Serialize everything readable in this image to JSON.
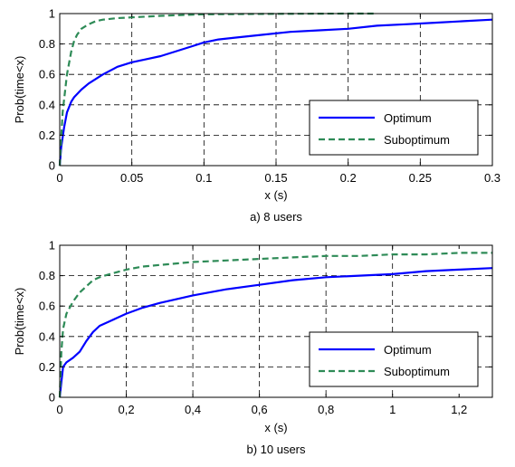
{
  "colors": {
    "optimum": "#0000ff",
    "suboptimum": "#2e8b57",
    "grid": "#000000",
    "axes": "#000000"
  },
  "chart_data": [
    {
      "type": "line",
      "caption": "a) 8 users",
      "xlabel": "x (s)",
      "ylabel": "Prob(time<x)",
      "xlim": [
        0,
        0.3
      ],
      "ylim": [
        0,
        1
      ],
      "xticks": [
        0,
        0.05,
        0.1,
        0.15,
        0.2,
        0.25,
        0.3
      ],
      "xtick_labels": [
        "0",
        "0.05",
        "0.1",
        "0.15",
        "0.2",
        "0.25",
        "0.3"
      ],
      "yticks": [
        0,
        0.2,
        0.4,
        0.6,
        0.8,
        1
      ],
      "ytick_labels": [
        "0",
        "0.2",
        "0.4",
        "0.6",
        "0.8",
        "1"
      ],
      "grid": true,
      "legend_position": "lower-right",
      "series": [
        {
          "name": "Optimum",
          "style": "solid",
          "x": [
            0,
            0.001,
            0.003,
            0.005,
            0.008,
            0.01,
            0.015,
            0.02,
            0.03,
            0.04,
            0.05,
            0.06,
            0.07,
            0.08,
            0.09,
            0.1,
            0.11,
            0.12,
            0.14,
            0.16,
            0.18,
            0.2,
            0.22,
            0.24,
            0.26,
            0.28,
            0.3
          ],
          "y": [
            0,
            0.12,
            0.25,
            0.35,
            0.42,
            0.45,
            0.5,
            0.54,
            0.6,
            0.65,
            0.68,
            0.7,
            0.72,
            0.75,
            0.78,
            0.81,
            0.83,
            0.84,
            0.86,
            0.88,
            0.89,
            0.9,
            0.92,
            0.93,
            0.94,
            0.95,
            0.96
          ]
        },
        {
          "name": "Suboptimum",
          "style": "dashed",
          "x": [
            0,
            0.002,
            0.005,
            0.008,
            0.01,
            0.012,
            0.015,
            0.02,
            0.025,
            0.03,
            0.04,
            0.05,
            0.07,
            0.1,
            0.15,
            0.2,
            0.22
          ],
          "y": [
            0,
            0.35,
            0.6,
            0.75,
            0.82,
            0.86,
            0.9,
            0.93,
            0.95,
            0.96,
            0.97,
            0.975,
            0.985,
            0.995,
            0.998,
            1.0,
            1.0
          ]
        }
      ]
    },
    {
      "type": "line",
      "caption": "b) 10 users",
      "xlabel": "x (s)",
      "ylabel": "Prob(time<x)",
      "xlim": [
        0,
        1.3
      ],
      "ylim": [
        0,
        1
      ],
      "xticks": [
        0,
        0.2,
        0.4,
        0.6,
        0.8,
        1,
        1.2
      ],
      "xtick_labels": [
        "0",
        "0,2",
        "0,4",
        "0,6",
        "0,8",
        "1",
        "1,2"
      ],
      "yticks": [
        0,
        0.2,
        0.4,
        0.6,
        0.8,
        1
      ],
      "ytick_labels": [
        "0",
        "0.2",
        "0.4",
        "0.6",
        "0.8",
        "1"
      ],
      "grid": true,
      "legend_position": "lower-right",
      "series": [
        {
          "name": "Optimum",
          "style": "solid",
          "x": [
            0,
            0.005,
            0.01,
            0.02,
            0.04,
            0.06,
            0.08,
            0.1,
            0.12,
            0.15,
            0.2,
            0.25,
            0.3,
            0.4,
            0.5,
            0.6,
            0.7,
            0.8,
            0.9,
            1.0,
            1.1,
            1.2,
            1.3
          ],
          "y": [
            0,
            0.1,
            0.2,
            0.23,
            0.26,
            0.3,
            0.37,
            0.43,
            0.47,
            0.5,
            0.55,
            0.59,
            0.62,
            0.67,
            0.71,
            0.74,
            0.77,
            0.79,
            0.8,
            0.81,
            0.83,
            0.84,
            0.85
          ]
        },
        {
          "name": "Suboptimum",
          "style": "dashed",
          "x": [
            0,
            0.005,
            0.01,
            0.02,
            0.04,
            0.06,
            0.08,
            0.1,
            0.12,
            0.15,
            0.2,
            0.25,
            0.3,
            0.4,
            0.5,
            0.6,
            0.7,
            0.8,
            0.9,
            1.0,
            1.1,
            1.2,
            1.3
          ],
          "y": [
            0,
            0.3,
            0.45,
            0.55,
            0.63,
            0.69,
            0.73,
            0.77,
            0.79,
            0.81,
            0.84,
            0.86,
            0.87,
            0.89,
            0.9,
            0.91,
            0.92,
            0.93,
            0.93,
            0.94,
            0.94,
            0.95,
            0.95
          ]
        }
      ]
    }
  ]
}
